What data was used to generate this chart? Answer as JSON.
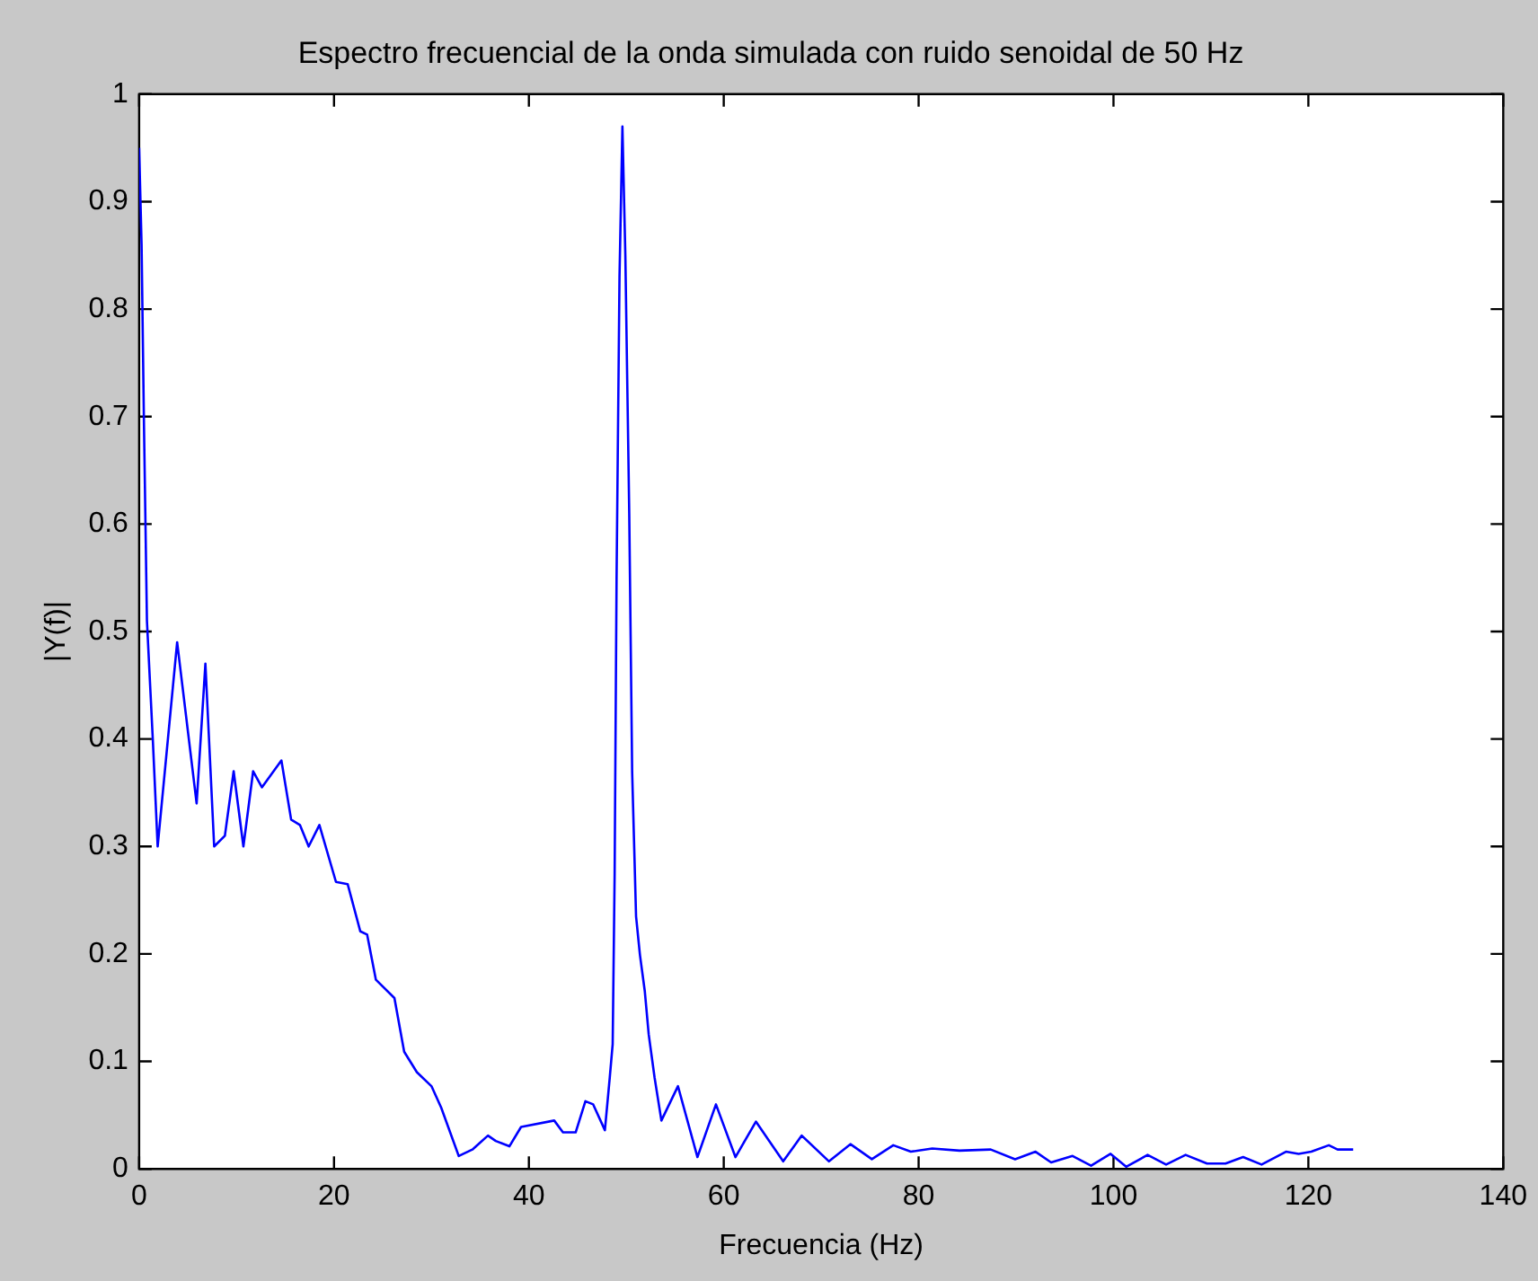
{
  "chart_data": {
    "type": "line",
    "title": "Espectro frecuencial de la onda simulada con ruido senoidal de 50 Hz",
    "xlabel": "Frecuencia (Hz)",
    "ylabel": "|Y(f)|",
    "xlim": [
      0,
      140
    ],
    "xticks": [
      0,
      20,
      40,
      60,
      80,
      100,
      120,
      140
    ],
    "ylim": [
      0,
      1
    ],
    "yticks": [
      0,
      0.1,
      0.2,
      0.3,
      0.4,
      0.5,
      0.6,
      0.7,
      0.8,
      0.9,
      1
    ],
    "grid": false,
    "legend": false,
    "marker": "none",
    "line_style": "solid",
    "x": [
      0,
      0.25,
      0.5,
      0.8,
      1.4,
      1.9,
      3.9,
      5.9,
      6.8,
      7.7,
      8.8,
      9.7,
      10.7,
      11.7,
      12.6,
      14.6,
      15.6,
      16.5,
      17.4,
      18.5,
      20.2,
      21.4,
      22.7,
      23.4,
      24.3,
      26.2,
      27.2,
      28.5,
      30,
      31,
      32.8,
      34.2,
      35.8,
      36.6,
      38,
      39.2,
      42.6,
      43.5,
      44.8,
      45.8,
      46.6,
      47.8,
      48.3,
      48.6,
      48.8,
      49,
      49.3,
      49.6,
      49.9,
      50.3,
      50.6,
      51,
      51.4,
      51.9,
      52.3,
      52.9,
      53.6,
      55.3,
      57.3,
      59.2,
      61.2,
      63.3,
      66.1,
      68,
      70.8,
      73,
      75.2,
      77.4,
      79.2,
      81.4,
      84.2,
      87.4,
      89.9,
      92,
      93.6,
      95.8,
      97.7,
      99.7,
      101.3,
      103.5,
      105.4,
      107.4,
      109.6,
      111.5,
      113.3,
      115.2,
      117.7,
      119,
      120.3,
      122.1,
      123,
      124.6
    ],
    "series": [
      {
        "color": "#0000ff",
        "values": [
          0.95,
          0.86,
          0.69,
          0.51,
          0.4,
          0.3,
          0.49,
          0.34,
          0.47,
          0.3,
          0.31,
          0.37,
          0.3,
          0.37,
          0.355,
          0.38,
          0.325,
          0.32,
          0.3,
          0.32,
          0.267,
          0.265,
          0.221,
          0.218,
          0.176,
          0.159,
          0.109,
          0.09,
          0.077,
          0.057,
          0.012,
          0.018,
          0.031,
          0.026,
          0.021,
          0.039,
          0.045,
          0.034,
          0.034,
          0.063,
          0.06,
          0.036,
          0.085,
          0.116,
          0.273,
          0.55,
          0.83,
          0.97,
          0.85,
          0.61,
          0.369,
          0.235,
          0.199,
          0.165,
          0.125,
          0.085,
          0.045,
          0.077,
          0.011,
          0.06,
          0.011,
          0.044,
          0.007,
          0.031,
          0.007,
          0.023,
          0.009,
          0.022,
          0.016,
          0.019,
          0.017,
          0.018,
          0.009,
          0.016,
          0.006,
          0.012,
          0.003,
          0.014,
          0.002,
          0.013,
          0.004,
          0.013,
          0.005,
          0.005,
          0.011,
          0.004,
          0.016,
          0.014,
          0.016,
          0.022,
          0.018,
          0.018
        ]
      }
    ]
  }
}
